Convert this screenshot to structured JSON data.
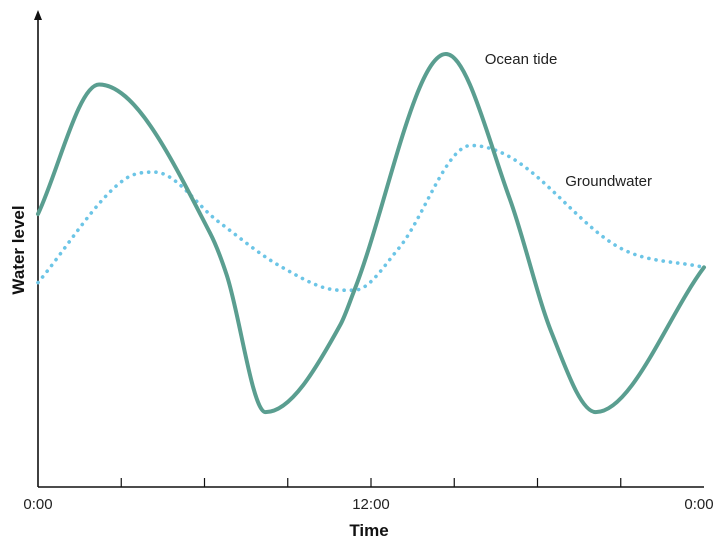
{
  "chart_data": {
    "type": "line",
    "title": "",
    "xlabel": "Time",
    "ylabel": "Water level",
    "x_ticks": [
      0,
      3,
      6,
      9,
      12,
      15,
      18,
      21,
      24
    ],
    "x_tick_labels": [
      "0:00",
      "",
      "",
      "",
      "12:00",
      "",
      "",
      "",
      "0:00"
    ],
    "xlim": [
      0,
      24
    ],
    "ylim": [
      0,
      100
    ],
    "grid": false,
    "legend": "none",
    "series": [
      {
        "name": "Ocean tide",
        "style": "solid",
        "color": "#5a9e90",
        "points": [
          [
            0,
            58
          ],
          [
            2.2,
            92
          ],
          [
            6.2,
            53
          ],
          [
            6.8,
            42
          ],
          [
            8.2,
            6
          ],
          [
            10.9,
            29
          ],
          [
            11.4,
            38
          ],
          [
            14.7,
            100
          ],
          [
            17,
            62
          ],
          [
            18.5,
            27
          ],
          [
            20.1,
            6
          ],
          [
            24,
            44
          ]
        ]
      },
      {
        "name": "Groundwater",
        "style": "dotted",
        "color": "#6cc5e6",
        "points": [
          [
            0,
            40
          ],
          [
            3.1,
            67
          ],
          [
            4.2,
            69
          ],
          [
            6.5,
            56
          ],
          [
            8.8,
            44
          ],
          [
            10.9,
            38
          ],
          [
            11.4,
            38
          ],
          [
            13,
            49
          ],
          [
            15.6,
            76
          ],
          [
            17,
            73
          ],
          [
            21,
            49
          ],
          [
            24,
            44
          ]
        ]
      }
    ],
    "annotations": [
      {
        "series": "Ocean tide",
        "text": "Ocean tide",
        "x": 16.1,
        "y": 100
      },
      {
        "series": "Groundwater",
        "text": "Groundwater",
        "x": 19,
        "y": 68
      }
    ]
  }
}
